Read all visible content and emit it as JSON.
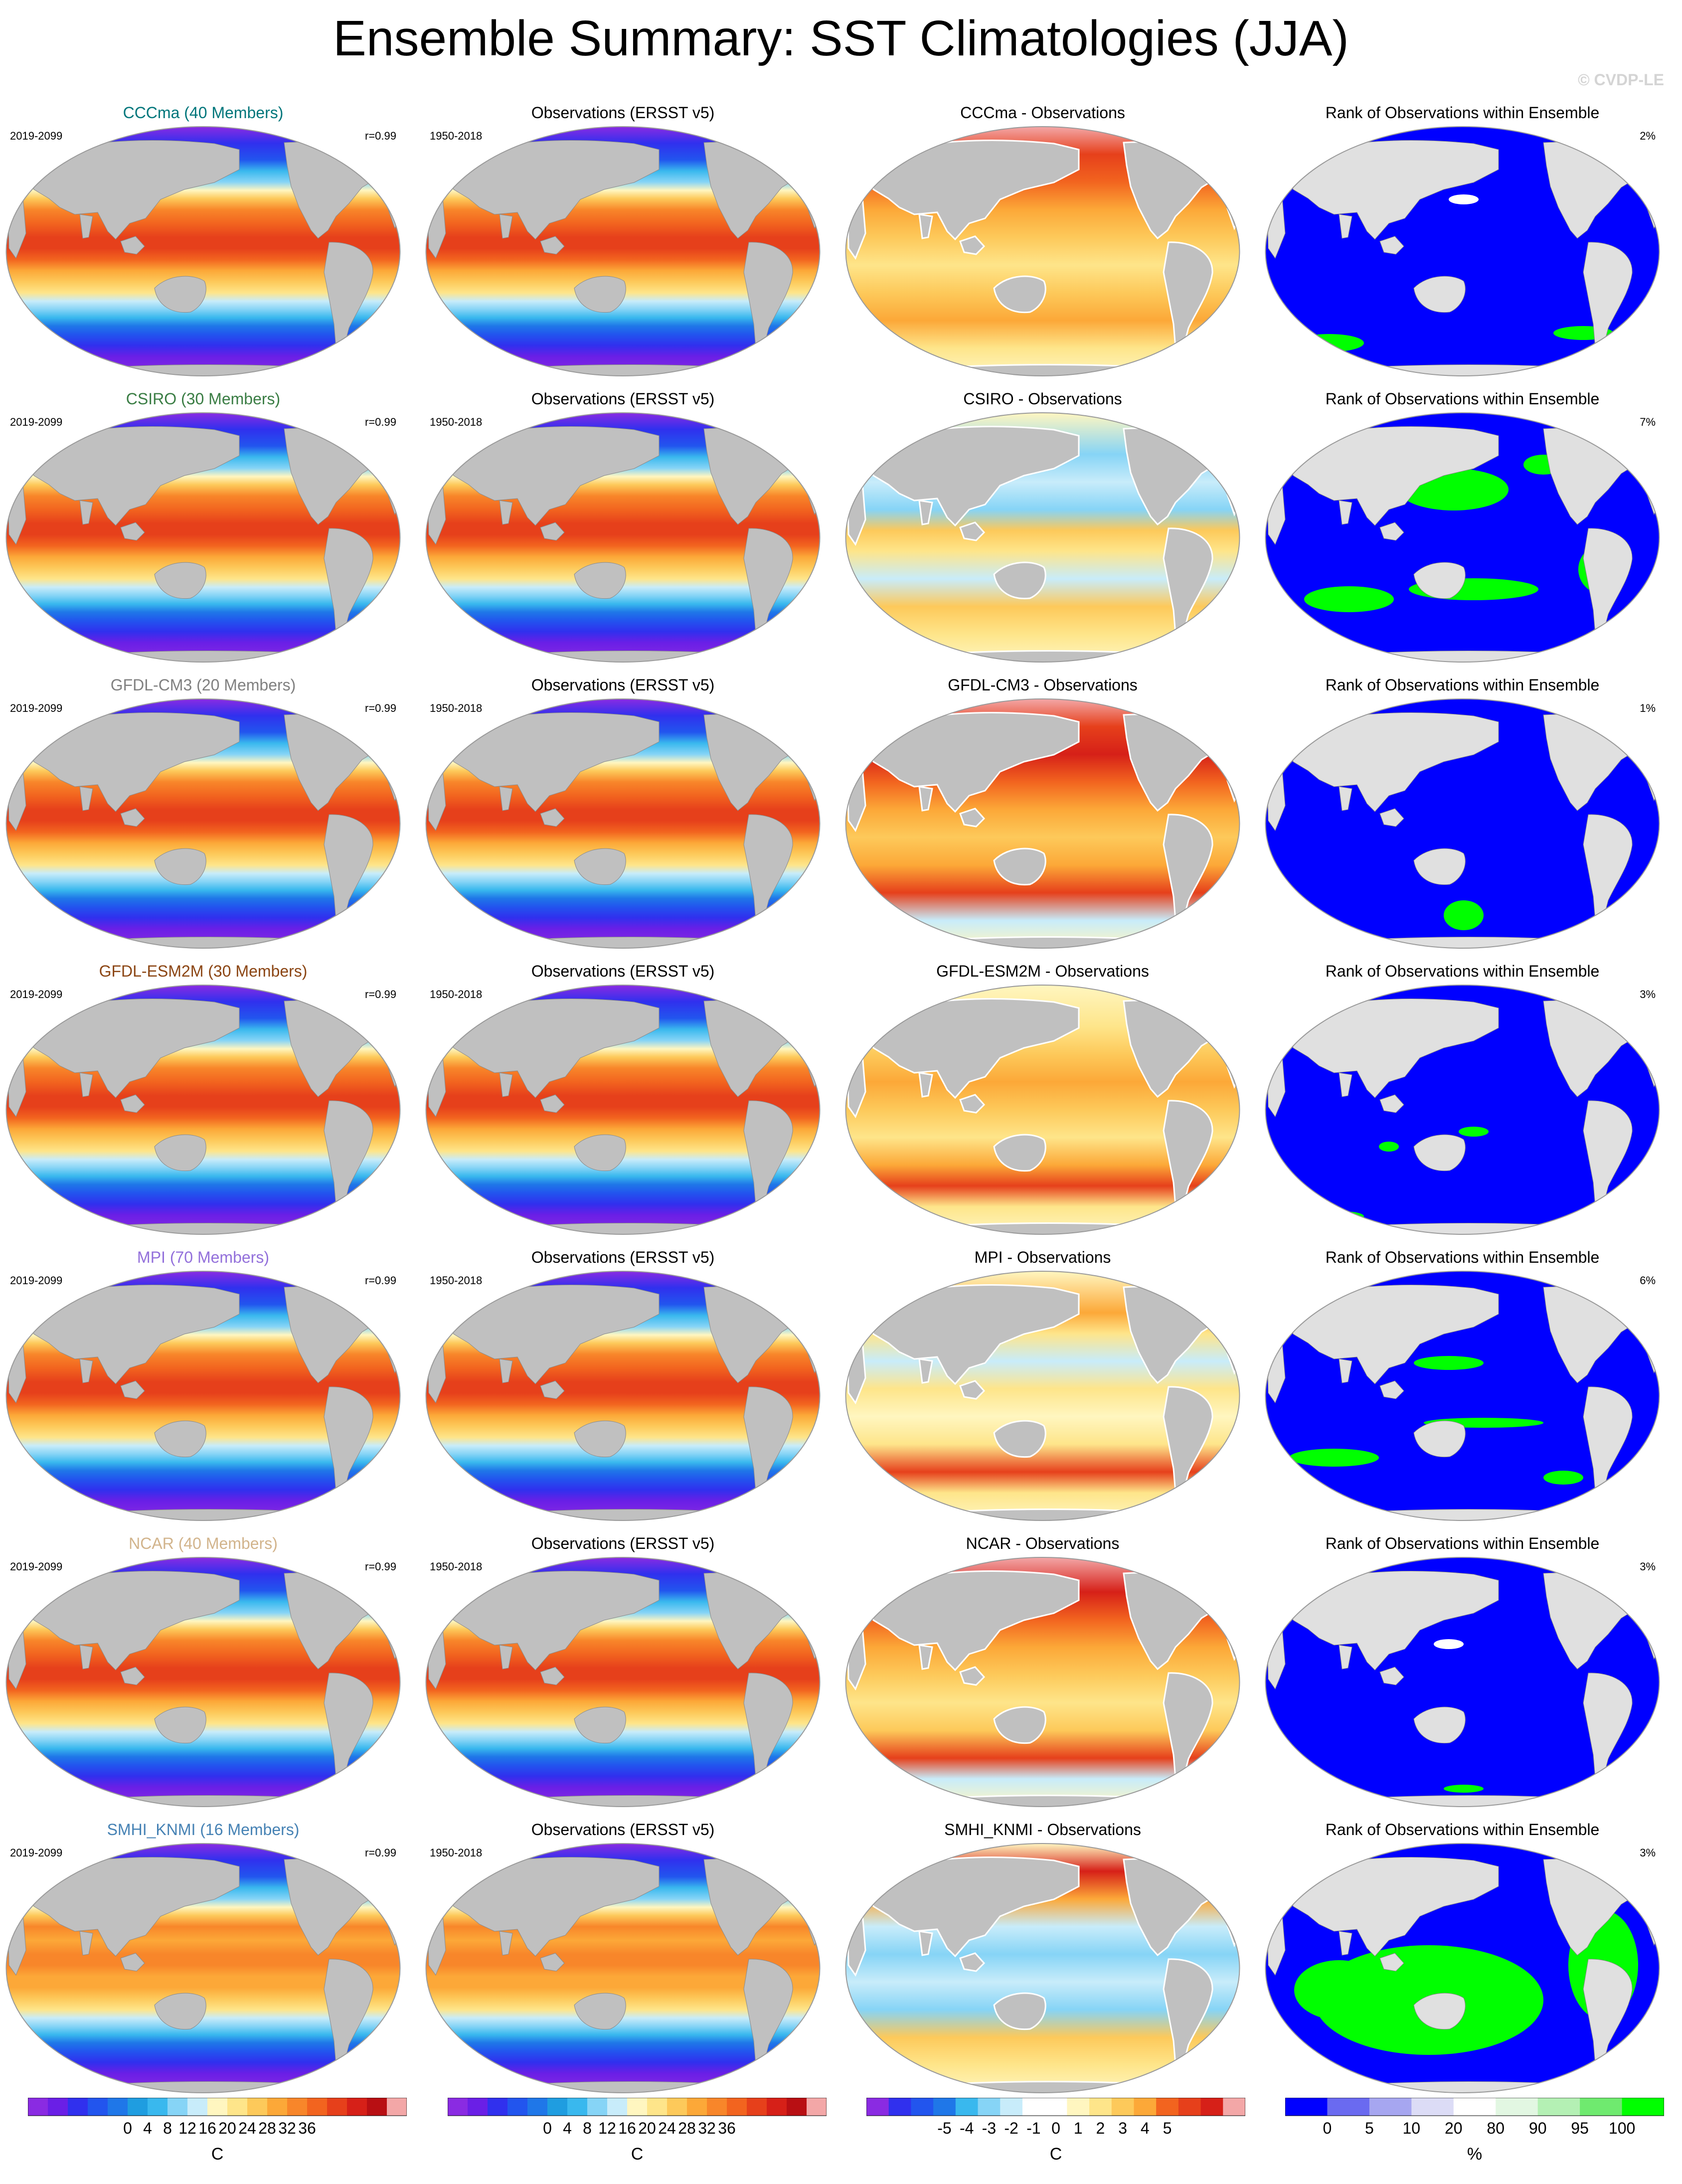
{
  "title": "Ensemble Summary: SST Climatologies (JJA)",
  "watermark": "© CVDP-LE",
  "colors": {
    "ocean_mask": "#c0c0c0",
    "land_rank_panel": "#e0e0e0",
    "rank_low": "#0000ff",
    "rank_high": "#00ff00",
    "rank_mid": "#ffffff"
  },
  "chart_data": {
    "type": "heatmap",
    "layout": "7 rows x 4 columns of global Robinson-projection maps",
    "columns": [
      "ensemble mean",
      "observations",
      "ensemble mean minus observations",
      "rank of observations within ensemble"
    ],
    "rows": [
      {
        "model": "CCCma (40 Members)",
        "model_color": "#00767b",
        "model_period": "2019-2099",
        "pattern_correlation": "r=0.99",
        "obs_title": "Observations (ERSST v5)",
        "obs_period": "1950-2018",
        "diff_title": "CCCma - Observations",
        "rank_title": "Rank of Observations within Ensemble",
        "rank_percent": "2%"
      },
      {
        "model": "CSIRO (30 Members)",
        "model_color": "#3a7d44",
        "model_period": "2019-2099",
        "pattern_correlation": "r=0.99",
        "obs_title": "Observations (ERSST v5)",
        "obs_period": "1950-2018",
        "diff_title": "CSIRO - Observations",
        "rank_title": "Rank of Observations within Ensemble",
        "rank_percent": "7%"
      },
      {
        "model": "GFDL-CM3 (20 Members)",
        "model_color": "#808080",
        "model_period": "2019-2099",
        "pattern_correlation": "r=0.99",
        "obs_title": "Observations (ERSST v5)",
        "obs_period": "1950-2018",
        "diff_title": "GFDL-CM3 - Observations",
        "rank_title": "Rank of Observations within Ensemble",
        "rank_percent": "1%"
      },
      {
        "model": "GFDL-ESM2M (30 Members)",
        "model_color": "#8b4513",
        "model_period": "2019-2099",
        "pattern_correlation": "r=0.99",
        "obs_title": "Observations (ERSST v5)",
        "obs_period": "1950-2018",
        "diff_title": "GFDL-ESM2M - Observations",
        "rank_title": "Rank of Observations within Ensemble",
        "rank_percent": "3%"
      },
      {
        "model": "MPI (70 Members)",
        "model_color": "#9370db",
        "model_period": "2019-2099",
        "pattern_correlation": "r=0.99",
        "obs_title": "Observations (ERSST v5)",
        "obs_period": "1950-2018",
        "diff_title": "MPI - Observations",
        "rank_title": "Rank of Observations within Ensemble",
        "rank_percent": "6%"
      },
      {
        "model": "NCAR (40 Members)",
        "model_color": "#d2b48c",
        "model_period": "2019-2099",
        "pattern_correlation": "r=0.99",
        "obs_title": "Observations (ERSST v5)",
        "obs_period": "1950-2018",
        "diff_title": "NCAR - Observations",
        "rank_title": "Rank of Observations within Ensemble",
        "rank_percent": "3%"
      },
      {
        "model": "SMHI_KNMI (16 Members)",
        "model_color": "#4682b4",
        "model_period": "2019-2099",
        "pattern_correlation": "r=0.99",
        "obs_title": "Observations (ERSST v5)",
        "obs_period": "1950-2018",
        "diff_title": "SMHI_KNMI - Observations",
        "rank_title": "Rank of Observations within Ensemble",
        "rank_percent": "3%"
      }
    ],
    "colorbars": [
      {
        "name": "sst",
        "unit": "C",
        "ticks": [
          "0",
          "4",
          "8",
          "12",
          "16",
          "20",
          "24",
          "28",
          "32",
          "36"
        ],
        "colors": [
          "#8a2be2",
          "#6a1fe6",
          "#3030ee",
          "#2255ee",
          "#1f77e8",
          "#1f9de0",
          "#39b8ee",
          "#86d4f6",
          "#c8ecfa",
          "#fff6c0",
          "#fee58a",
          "#fdc95a",
          "#fca838",
          "#f8862a",
          "#f2641f",
          "#e6401b",
          "#d62018",
          "#b80f13",
          "#f3a7a7"
        ]
      },
      {
        "name": "sst",
        "unit": "C",
        "ticks": [
          "0",
          "4",
          "8",
          "12",
          "16",
          "20",
          "24",
          "28",
          "32",
          "36"
        ],
        "colors": [
          "#8a2be2",
          "#6a1fe6",
          "#3030ee",
          "#2255ee",
          "#1f77e8",
          "#1f9de0",
          "#39b8ee",
          "#86d4f6",
          "#c8ecfa",
          "#fff6c0",
          "#fee58a",
          "#fdc95a",
          "#fca838",
          "#f8862a",
          "#f2641f",
          "#e6401b",
          "#d62018",
          "#b80f13",
          "#f3a7a7"
        ]
      },
      {
        "name": "difference",
        "unit": "C",
        "ticks": [
          "-5",
          "-4",
          "-3",
          "-2",
          "-1",
          "0",
          "1",
          "2",
          "3",
          "4",
          "5"
        ],
        "colors": [
          "#8a2be2",
          "#3030ee",
          "#2255ee",
          "#1f77e8",
          "#39b8ee",
          "#86d4f6",
          "#c8ecfa",
          "#ffffff",
          "#ffffff",
          "#fff6c0",
          "#fee58a",
          "#fdc95a",
          "#fca838",
          "#f2641f",
          "#e6401b",
          "#d62018",
          "#f3a7a7"
        ]
      },
      {
        "name": "rank",
        "unit": "%",
        "ticks": [
          "0",
          "5",
          "10",
          "20",
          "80",
          "90",
          "95",
          "100"
        ],
        "colors": [
          "#0000ff",
          "#6a6af0",
          "#a6a6f0",
          "#dcdcf6",
          "#ffffff",
          "#e2f7e2",
          "#b4f0b4",
          "#6fea6f",
          "#00ff00"
        ]
      }
    ]
  }
}
